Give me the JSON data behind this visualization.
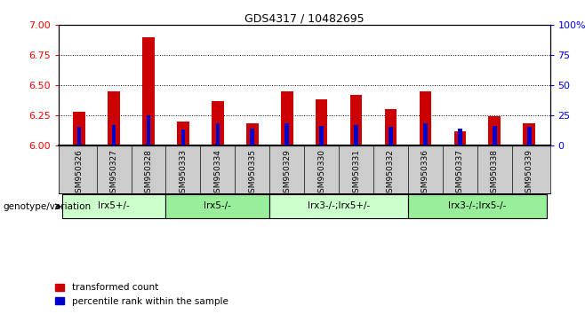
{
  "title": "GDS4317 / 10482695",
  "samples": [
    "GSM950326",
    "GSM950327",
    "GSM950328",
    "GSM950333",
    "GSM950334",
    "GSM950335",
    "GSM950329",
    "GSM950330",
    "GSM950331",
    "GSM950332",
    "GSM950336",
    "GSM950337",
    "GSM950338",
    "GSM950339"
  ],
  "red_values": [
    6.28,
    6.45,
    6.9,
    6.2,
    6.37,
    6.18,
    6.45,
    6.38,
    6.42,
    6.3,
    6.45,
    6.12,
    6.24,
    6.18
  ],
  "blue_values": [
    15,
    17,
    25,
    13,
    18,
    14,
    18,
    16,
    17,
    15,
    18,
    14,
    16,
    15
  ],
  "ylim_left": [
    6.0,
    7.0
  ],
  "ylim_right": [
    0,
    100
  ],
  "yticks_left": [
    6.0,
    6.25,
    6.5,
    6.75,
    7.0
  ],
  "yticks_right": [
    0,
    25,
    50,
    75,
    100
  ],
  "grid_values": [
    6.25,
    6.5,
    6.75
  ],
  "groups": [
    {
      "label": "lrx5+/-",
      "start": 0,
      "end": 3,
      "color": "#ccffcc"
    },
    {
      "label": "lrx5-/-",
      "start": 3,
      "end": 6,
      "color": "#99ee99"
    },
    {
      "label": "lrx3-/-;lrx5+/-",
      "start": 6,
      "end": 10,
      "color": "#ccffcc"
    },
    {
      "label": "lrx3-/-;lrx5-/-",
      "start": 10,
      "end": 14,
      "color": "#99ee99"
    }
  ],
  "red_color": "#cc0000",
  "blue_color": "#0000cc",
  "bar_width": 0.35,
  "blue_bar_width": 0.12,
  "legend_red": "transformed count",
  "legend_blue": "percentile rank within the sample",
  "genotype_label": "genotype/variation",
  "background_gray": "#cccccc"
}
